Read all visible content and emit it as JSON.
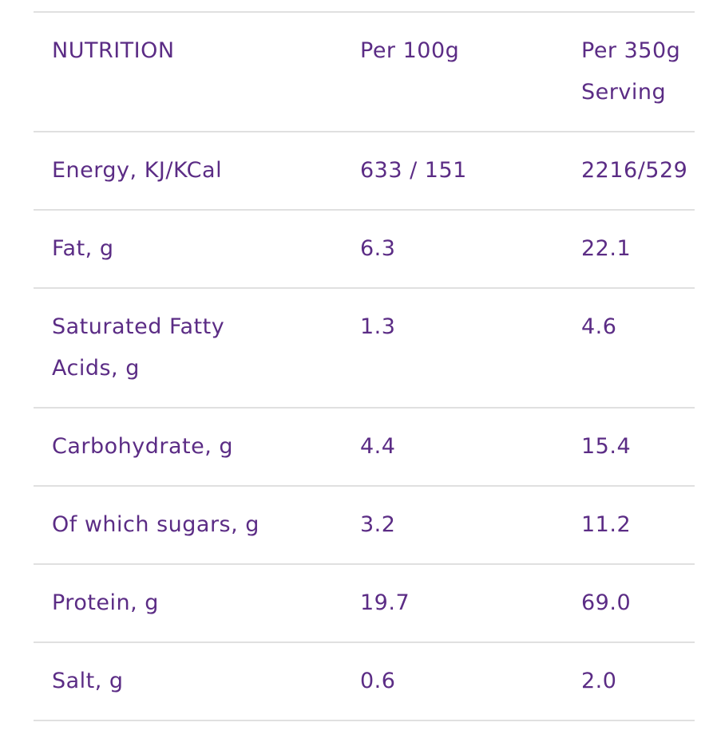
{
  "theme": {
    "text-purple": "#5b2c85",
    "divider": "#e0e0e0",
    "background": "#ffffff"
  },
  "table": {
    "header": {
      "label": "NUTRITION",
      "per_100g": "Per 100g",
      "per_serving": "Per 350g Serving"
    },
    "rows": [
      {
        "label": "Energy, KJ/KCal",
        "per_100g": "633 / 151",
        "per_serving": "2216/529"
      },
      {
        "label": "Fat, g",
        "per_100g": "6.3",
        "per_serving": "22.1"
      },
      {
        "label": "Saturated Fatty Acids, g",
        "per_100g": "1.3",
        "per_serving": "4.6"
      },
      {
        "label": "Carbohydrate, g",
        "per_100g": "4.4",
        "per_serving": "15.4"
      },
      {
        "label": "Of which sugars, g",
        "per_100g": "3.2",
        "per_serving": "11.2"
      },
      {
        "label": "Protein, g",
        "per_100g": "19.7",
        "per_serving": "69.0"
      },
      {
        "label": "Salt, g",
        "per_100g": "0.6",
        "per_serving": "2.0"
      }
    ]
  }
}
